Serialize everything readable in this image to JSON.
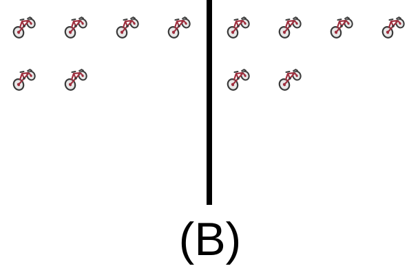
{
  "caption": "(B)",
  "left_panel": {
    "bike_count": 6,
    "bike_icon": "bicycle-icon"
  },
  "right_panel": {
    "bike_count": 6,
    "bike_icon": "bicycle-icon"
  },
  "colors": {
    "bike_frame": "#a0303f",
    "tire": "#3a3a3a",
    "divider": "#000000"
  }
}
